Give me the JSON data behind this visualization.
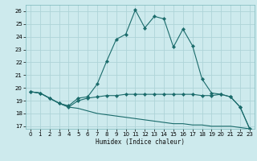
{
  "title": "",
  "xlabel": "Humidex (Indice chaleur)",
  "background_color": "#cdeaed",
  "grid_color": "#aed4d8",
  "line_color": "#1a6b6b",
  "xlim": [
    -0.5,
    23.5
  ],
  "ylim": [
    16.8,
    26.5
  ],
  "yticks": [
    17,
    18,
    19,
    20,
    21,
    22,
    23,
    24,
    25,
    26
  ],
  "xticks": [
    0,
    1,
    2,
    3,
    4,
    5,
    6,
    7,
    8,
    9,
    10,
    11,
    12,
    13,
    14,
    15,
    16,
    17,
    18,
    19,
    20,
    21,
    22,
    23
  ],
  "series1_x": [
    0,
    1,
    2,
    3,
    4,
    5,
    6,
    7,
    8,
    9,
    10,
    11,
    12,
    13,
    14,
    15,
    16,
    17,
    18,
    19,
    20,
    21,
    22,
    23
  ],
  "series1_y": [
    19.7,
    19.6,
    19.2,
    18.8,
    18.6,
    19.2,
    19.3,
    20.3,
    22.1,
    23.8,
    24.2,
    26.1,
    24.7,
    25.6,
    25.4,
    23.2,
    24.6,
    23.3,
    20.7,
    19.6,
    19.5,
    19.3,
    18.5,
    16.8
  ],
  "series2_x": [
    0,
    1,
    2,
    3,
    4,
    5,
    6,
    7,
    8,
    9,
    10,
    11,
    12,
    13,
    14,
    15,
    16,
    17,
    18,
    19,
    20,
    21,
    22,
    23
  ],
  "series2_y": [
    19.7,
    19.6,
    19.2,
    18.8,
    18.5,
    19.0,
    19.2,
    19.3,
    19.4,
    19.4,
    19.5,
    19.5,
    19.5,
    19.5,
    19.5,
    19.5,
    19.5,
    19.5,
    19.4,
    19.4,
    19.5,
    19.3,
    18.5,
    16.8
  ],
  "series3_x": [
    0,
    1,
    2,
    3,
    4,
    5,
    6,
    7,
    8,
    9,
    10,
    11,
    12,
    13,
    14,
    15,
    16,
    17,
    18,
    19,
    20,
    21,
    22,
    23
  ],
  "series3_y": [
    19.7,
    19.6,
    19.2,
    18.8,
    18.5,
    18.4,
    18.2,
    18.0,
    17.9,
    17.8,
    17.7,
    17.6,
    17.5,
    17.4,
    17.3,
    17.2,
    17.2,
    17.1,
    17.1,
    17.0,
    17.0,
    17.0,
    16.9,
    16.8
  ]
}
